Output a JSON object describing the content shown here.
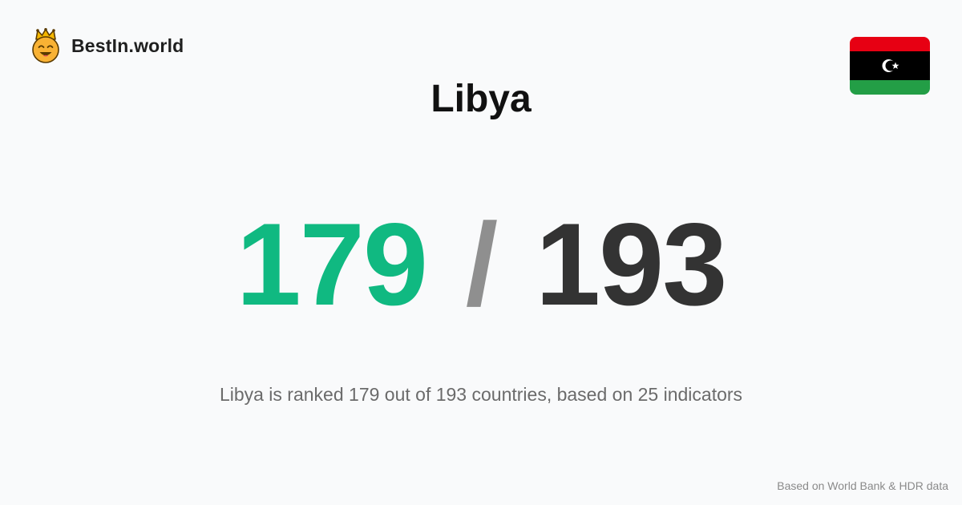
{
  "brand": {
    "name": "BestIn.world",
    "icon": "crowned-smiley-icon"
  },
  "flag": {
    "icon": "libya-flag-icon",
    "colors": [
      "#e70013",
      "#000000",
      "#239e46",
      "#ffffff"
    ]
  },
  "page": {
    "title": "Libya"
  },
  "ranking": {
    "rank": "179",
    "separator": "/",
    "total": "193",
    "summary": "Libya is ranked 179 out of 193 countries, based on 25 indicators"
  },
  "footer": {
    "source": "Based on World Bank & HDR data"
  },
  "colors": {
    "accent": "#10b981",
    "total": "#333333",
    "background": "#f9fafb"
  }
}
